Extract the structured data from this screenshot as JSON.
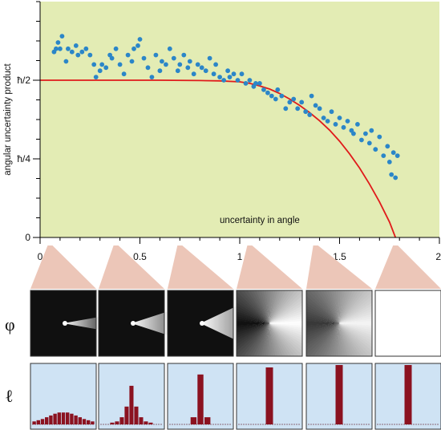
{
  "chart_data": {
    "type": "scatter",
    "xlabel": "uncertainty in angle",
    "ylabel": "angular uncertainty product",
    "xlim": [
      0,
      2
    ],
    "ylim": [
      0,
      0.75
    ],
    "x_ticks": [
      {
        "value": 0,
        "label": "0"
      },
      {
        "value": 0.5,
        "label": "0.5"
      },
      {
        "value": 1,
        "label": "1"
      },
      {
        "value": 1.5,
        "label": "1.5"
      },
      {
        "value": 2,
        "label": "2"
      }
    ],
    "y_ticks": [
      {
        "value": 0,
        "label": "0"
      },
      {
        "value": 0.25,
        "label": "ħ/4"
      },
      {
        "value": 0.5,
        "label": "ħ/2"
      }
    ],
    "grid": false,
    "colors": {
      "plot_background": "#e3ecb4",
      "points": "#2b86c8",
      "curve": "#e01b1b",
      "wedge": "#ecc6b8",
      "bar_panel": "#cfe3f4",
      "bars": "#8b1220"
    },
    "series": [
      {
        "kind": "points",
        "points": [
          [
            0.07,
            0.59
          ],
          [
            0.08,
            0.6
          ],
          [
            0.09,
            0.62
          ],
          [
            0.1,
            0.6
          ],
          [
            0.11,
            0.64
          ],
          [
            0.13,
            0.56
          ],
          [
            0.14,
            0.6
          ],
          [
            0.16,
            0.59
          ],
          [
            0.18,
            0.61
          ],
          [
            0.19,
            0.58
          ],
          [
            0.21,
            0.59
          ],
          [
            0.23,
            0.6
          ],
          [
            0.25,
            0.58
          ],
          [
            0.27,
            0.55
          ],
          [
            0.28,
            0.51
          ],
          [
            0.3,
            0.53
          ],
          [
            0.31,
            0.55
          ],
          [
            0.33,
            0.54
          ],
          [
            0.35,
            0.58
          ],
          [
            0.36,
            0.57
          ],
          [
            0.38,
            0.6
          ],
          [
            0.4,
            0.55
          ],
          [
            0.42,
            0.52
          ],
          [
            0.44,
            0.58
          ],
          [
            0.46,
            0.56
          ],
          [
            0.47,
            0.6
          ],
          [
            0.49,
            0.61
          ],
          [
            0.5,
            0.63
          ],
          [
            0.52,
            0.57
          ],
          [
            0.54,
            0.54
          ],
          [
            0.56,
            0.51
          ],
          [
            0.58,
            0.58
          ],
          [
            0.6,
            0.53
          ],
          [
            0.61,
            0.56
          ],
          [
            0.63,
            0.55
          ],
          [
            0.65,
            0.6
          ],
          [
            0.67,
            0.57
          ],
          [
            0.69,
            0.53
          ],
          [
            0.7,
            0.55
          ],
          [
            0.72,
            0.58
          ],
          [
            0.74,
            0.54
          ],
          [
            0.75,
            0.56
          ],
          [
            0.77,
            0.52
          ],
          [
            0.79,
            0.55
          ],
          [
            0.81,
            0.54
          ],
          [
            0.83,
            0.53
          ],
          [
            0.85,
            0.57
          ],
          [
            0.87,
            0.52
          ],
          [
            0.88,
            0.55
          ],
          [
            0.9,
            0.51
          ],
          [
            0.92,
            0.5
          ],
          [
            0.94,
            0.53
          ],
          [
            0.95,
            0.51
          ],
          [
            0.97,
            0.52
          ],
          [
            0.99,
            0.5
          ],
          [
            1.01,
            0.52
          ],
          [
            1.03,
            0.49
          ],
          [
            1.05,
            0.5
          ],
          [
            1.07,
            0.48
          ],
          [
            1.08,
            0.49
          ],
          [
            1.1,
            0.49
          ],
          [
            1.12,
            0.47
          ],
          [
            1.14,
            0.46
          ],
          [
            1.16,
            0.45
          ],
          [
            1.18,
            0.44
          ],
          [
            1.19,
            0.47
          ],
          [
            1.21,
            0.45
          ],
          [
            1.23,
            0.41
          ],
          [
            1.25,
            0.43
          ],
          [
            1.27,
            0.44
          ],
          [
            1.29,
            0.41
          ],
          [
            1.31,
            0.43
          ],
          [
            1.33,
            0.4
          ],
          [
            1.35,
            0.39
          ],
          [
            1.36,
            0.45
          ],
          [
            1.38,
            0.42
          ],
          [
            1.4,
            0.41
          ],
          [
            1.42,
            0.38
          ],
          [
            1.44,
            0.37
          ],
          [
            1.46,
            0.4
          ],
          [
            1.48,
            0.36
          ],
          [
            1.5,
            0.38
          ],
          [
            1.52,
            0.35
          ],
          [
            1.54,
            0.37
          ],
          [
            1.56,
            0.34
          ],
          [
            1.57,
            0.33
          ],
          [
            1.59,
            0.36
          ],
          [
            1.61,
            0.31
          ],
          [
            1.63,
            0.33
          ],
          [
            1.65,
            0.3
          ],
          [
            1.66,
            0.34
          ],
          [
            1.68,
            0.28
          ],
          [
            1.7,
            0.32
          ],
          [
            1.72,
            0.26
          ],
          [
            1.74,
            0.29
          ],
          [
            1.75,
            0.24
          ],
          [
            1.76,
            0.2
          ],
          [
            1.77,
            0.27
          ],
          [
            1.78,
            0.19
          ],
          [
            1.79,
            0.26
          ]
        ]
      },
      {
        "kind": "curve",
        "points": [
          [
            0,
            0.5
          ],
          [
            0.2,
            0.5
          ],
          [
            0.4,
            0.5
          ],
          [
            0.6,
            0.5
          ],
          [
            0.8,
            0.499
          ],
          [
            0.9,
            0.498
          ],
          [
            1.0,
            0.495
          ],
          [
            1.05,
            0.49
          ],
          [
            1.1,
            0.482
          ],
          [
            1.15,
            0.472
          ],
          [
            1.2,
            0.458
          ],
          [
            1.25,
            0.44
          ],
          [
            1.3,
            0.42
          ],
          [
            1.35,
            0.397
          ],
          [
            1.4,
            0.371
          ],
          [
            1.45,
            0.341
          ],
          [
            1.5,
            0.306
          ],
          [
            1.55,
            0.266
          ],
          [
            1.6,
            0.221
          ],
          [
            1.65,
            0.17
          ],
          [
            1.7,
            0.113
          ],
          [
            1.75,
            0.049
          ],
          [
            1.78,
            0.0
          ]
        ]
      }
    ],
    "phase_panels": [
      {
        "at_x": 0.05,
        "type": "wedge",
        "spread": 8,
        "reach": 0.55
      },
      {
        "at_x": 0.38,
        "type": "wedge",
        "spread": 20,
        "reach": 0.75
      },
      {
        "at_x": 0.7,
        "type": "wedge",
        "spread": 35,
        "reach": 0.9
      },
      {
        "at_x": 1.05,
        "type": "sweep"
      },
      {
        "at_x": 1.38,
        "type": "sweep_soft"
      },
      {
        "at_x": 1.78,
        "type": "white"
      }
    ],
    "distribution_panels": [
      [
        0.05,
        0.07,
        0.09,
        0.12,
        0.15,
        0.18,
        0.2,
        0.2,
        0.2,
        0.18,
        0.15,
        0.12,
        0.09,
        0.07,
        0.05
      ],
      [
        0.02,
        0.02,
        0.03,
        0.05,
        0.12,
        0.3,
        0.65,
        0.3,
        0.12,
        0.05,
        0.03,
        0.02,
        0.02
      ],
      [
        0.01,
        0.01,
        0.02,
        0.12,
        0.84,
        0.12,
        0.02,
        0.01,
        0.01
      ],
      [
        0.01,
        0.01,
        0.02,
        0.96,
        0.02,
        0.01,
        0.01
      ],
      [
        0.01,
        1.0,
        0.01
      ],
      [
        0.01,
        1.0,
        0.01
      ]
    ],
    "row_labels": {
      "phi": "φ",
      "ell": "ℓ"
    }
  }
}
